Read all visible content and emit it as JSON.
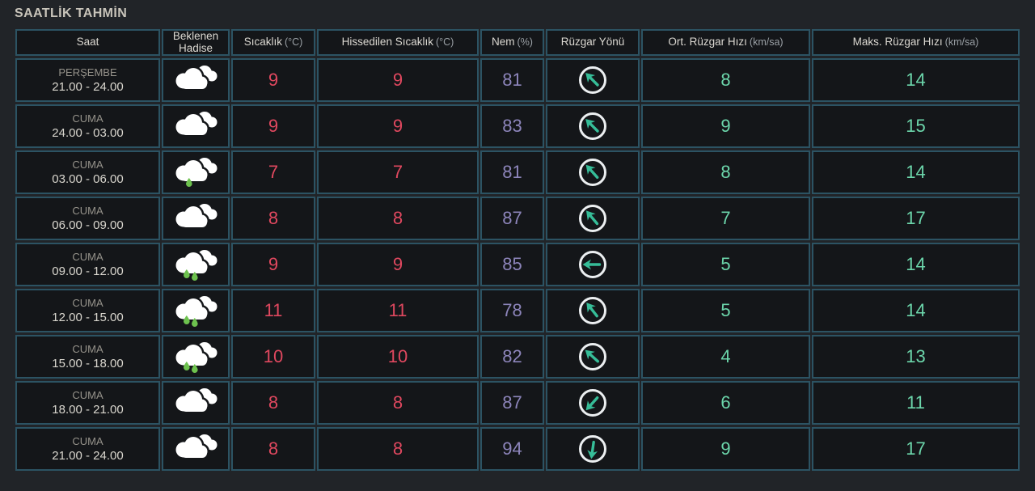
{
  "title": "SAATLİK TAHMİN",
  "colors": {
    "temperature": "#e0485f",
    "humidity": "#8d85bb",
    "wind_speed": "#6cd6ab",
    "wind_arrow": "#36bd98",
    "rain_drop": "#6dc24e",
    "grid_border": "#2c5363"
  },
  "table": {
    "columns": [
      {
        "label": "Saat",
        "unit": ""
      },
      {
        "label": "Beklenen Hadise",
        "unit": ""
      },
      {
        "label": "Sıcaklık",
        "unit": "(°C)"
      },
      {
        "label": "Hissedilen Sıcaklık",
        "unit": "(°C)"
      },
      {
        "label": "Nem",
        "unit": "(%)"
      },
      {
        "label": "Rüzgar Yönü",
        "unit": ""
      },
      {
        "label": "Ort. Rüzgar Hızı",
        "unit": "(km/sa)"
      },
      {
        "label": "Maks. Rüzgar Hızı",
        "unit": "(km/sa)"
      }
    ],
    "rows": [
      {
        "day": "PERŞEMBE",
        "time": "21.00 - 24.00",
        "condition": "cloudy",
        "temp": "9",
        "feels": "9",
        "humidity": "81",
        "wind_dir_deg": -45,
        "wind_avg": "8",
        "wind_max": "14"
      },
      {
        "day": "CUMA",
        "time": "24.00 - 03.00",
        "condition": "cloudy",
        "temp": "9",
        "feels": "9",
        "humidity": "83",
        "wind_dir_deg": -45,
        "wind_avg": "9",
        "wind_max": "15"
      },
      {
        "day": "CUMA",
        "time": "03.00 - 06.00",
        "condition": "light-rain",
        "temp": "7",
        "feels": "7",
        "humidity": "81",
        "wind_dir_deg": -42,
        "wind_avg": "8",
        "wind_max": "14"
      },
      {
        "day": "CUMA",
        "time": "06.00 - 09.00",
        "condition": "cloudy",
        "temp": "8",
        "feels": "8",
        "humidity": "87",
        "wind_dir_deg": -40,
        "wind_avg": "7",
        "wind_max": "17"
      },
      {
        "day": "CUMA",
        "time": "09.00 - 12.00",
        "condition": "rain",
        "temp": "9",
        "feels": "9",
        "humidity": "85",
        "wind_dir_deg": -90,
        "wind_avg": "5",
        "wind_max": "14"
      },
      {
        "day": "CUMA",
        "time": "12.00 - 15.00",
        "condition": "rain",
        "temp": "11",
        "feels": "11",
        "humidity": "78",
        "wind_dir_deg": -38,
        "wind_avg": "5",
        "wind_max": "14"
      },
      {
        "day": "CUMA",
        "time": "15.00 - 18.00",
        "condition": "rain",
        "temp": "10",
        "feels": "10",
        "humidity": "82",
        "wind_dir_deg": -48,
        "wind_avg": "4",
        "wind_max": "13"
      },
      {
        "day": "CUMA",
        "time": "18.00 - 21.00",
        "condition": "cloudy",
        "temp": "8",
        "feels": "8",
        "humidity": "87",
        "wind_dir_deg": 222,
        "wind_avg": "6",
        "wind_max": "11"
      },
      {
        "day": "CUMA",
        "time": "21.00 - 24.00",
        "condition": "cloudy",
        "temp": "8",
        "feels": "8",
        "humidity": "94",
        "wind_dir_deg": 188,
        "wind_avg": "9",
        "wind_max": "17"
      }
    ]
  }
}
